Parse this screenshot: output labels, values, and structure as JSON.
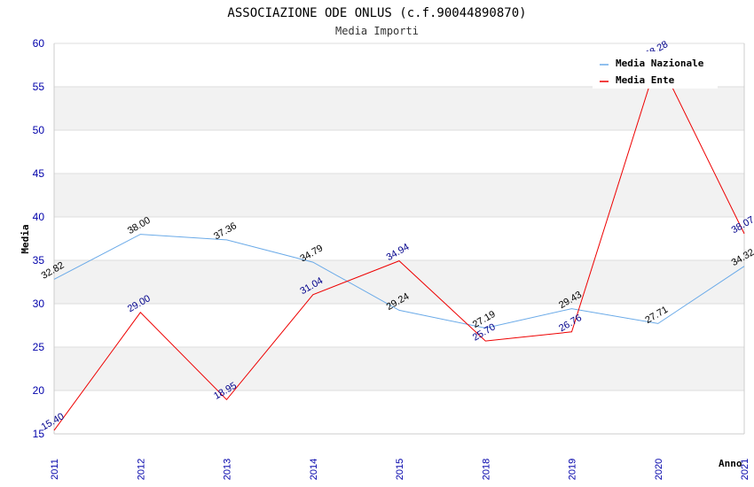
{
  "chart_data": {
    "type": "line",
    "title": "ASSOCIAZIONE ODE ONLUS (c.f.90044890870)",
    "subtitle": "Media Importi",
    "xlabel": "Anno",
    "ylabel": "Media",
    "categories": [
      "2011",
      "2012",
      "2013",
      "2014",
      "2015",
      "2018",
      "2019",
      "2020",
      "2021"
    ],
    "ylim": [
      15,
      60
    ],
    "yticks": [
      "15",
      "20",
      "25",
      "30",
      "35",
      "40",
      "45",
      "50",
      "55",
      "60"
    ],
    "grid": true,
    "legend_position": "top-right",
    "series": [
      {
        "name": "Media Nazionale",
        "color": "#6aaae8",
        "label_color": "#000000",
        "values": [
          32.82,
          38.0,
          37.36,
          34.79,
          29.24,
          27.19,
          29.43,
          27.71,
          34.32
        ],
        "labels": [
          "32.82",
          "38.00",
          "37.36",
          "34.79",
          "29.24",
          "27.19",
          "29.43",
          "27.71",
          "34.32"
        ]
      },
      {
        "name": "Media Ente",
        "color": "#ee0000",
        "label_color": "#00008b",
        "values": [
          15.4,
          29.0,
          18.95,
          31.04,
          34.94,
          25.7,
          26.76,
          58.28,
          38.07
        ],
        "labels": [
          "15.40",
          "29.00",
          "18.95",
          "31.04",
          "34.94",
          "25.70",
          "26.76",
          "58.28",
          "38.07"
        ]
      }
    ]
  }
}
